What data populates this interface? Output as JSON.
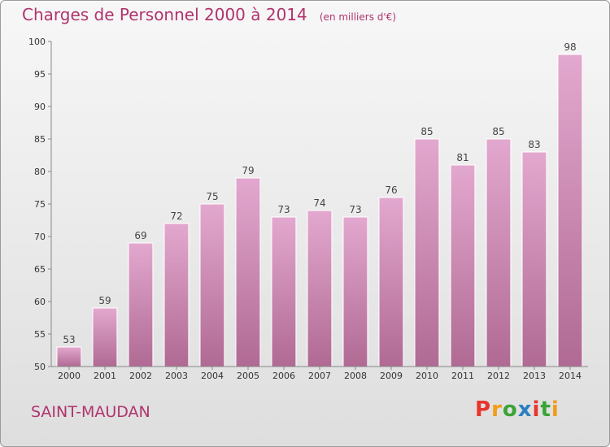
{
  "header": {
    "title": "Charges de Personnel 2000 à 2014",
    "unit": "(en milliers d'€)"
  },
  "footer": {
    "city": "SAINT-MAUDAN",
    "logo": "Proxiti"
  },
  "colors": {
    "title": "#b0336e",
    "bar_top": "#e3a8cf",
    "bar_bottom": "#b06a93",
    "logo_letters": [
      "#e8352c",
      "#f39c16",
      "#3aa435",
      "#2a7fc1",
      "#e8352c",
      "#3aa435",
      "#f39c16"
    ]
  },
  "chart_data": {
    "type": "bar",
    "categories": [
      "2000",
      "2001",
      "2002",
      "2003",
      "2004",
      "2005",
      "2006",
      "2007",
      "2008",
      "2009",
      "2010",
      "2011",
      "2012",
      "2013",
      "2014"
    ],
    "values": [
      53,
      59,
      69,
      72,
      75,
      79,
      73,
      74,
      73,
      76,
      85,
      81,
      85,
      83,
      98
    ],
    "ylim": [
      50,
      100
    ],
    "yticks": [
      50,
      55,
      60,
      65,
      70,
      75,
      80,
      85,
      90,
      95,
      100
    ],
    "grid": false,
    "data_labels": true
  }
}
